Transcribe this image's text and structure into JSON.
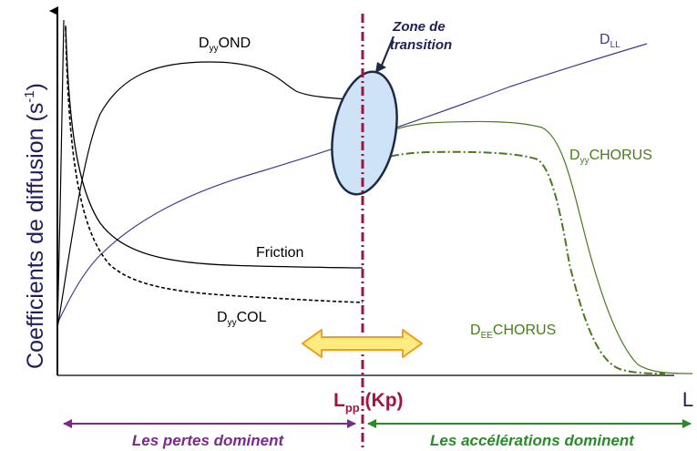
{
  "y_axis_label": {
    "main": "Coefficients de diffusion (s",
    "sup": "-1",
    "close": ")"
  },
  "x_axis_label": "L",
  "labels": {
    "dyy_ond": {
      "base": "D",
      "sub": "yy",
      "rest": "OND"
    },
    "dll": {
      "base": "D",
      "sub": "LL",
      "rest": ""
    },
    "dyy_chorus": {
      "base": "D",
      "sub": "yy",
      "rest": "CHORUS"
    },
    "dee_chorus": {
      "base": "D",
      "sub": "EE",
      "rest": "CHORUS"
    },
    "dyy_col": {
      "base": "D",
      "sub": "yy",
      "rest": "COL"
    },
    "friction": "Friction"
  },
  "zone": {
    "line1": "Zone de",
    "line2": "transition"
  },
  "lpp": {
    "base": "L",
    "sub": "pp",
    "rest": " (Kp)"
  },
  "regions": {
    "losses": "Les pertes dominent",
    "accelerations": "Les accélérations dominent"
  },
  "colors": {
    "axis": "#000000",
    "black_curves": "#000000",
    "dll": "#3d3d8f",
    "chorus": "#4a7a1e",
    "lpp_line": "#a0153e",
    "zone_fill": "#cfe3f7",
    "zone_stroke": "#1f2a44",
    "label_text": "#1f1f5a",
    "losses": "#7a2a8a",
    "accel": "#2a8a2a",
    "arrow_fill": "#ffeb80",
    "arrow_stroke": "#f0a020"
  }
}
